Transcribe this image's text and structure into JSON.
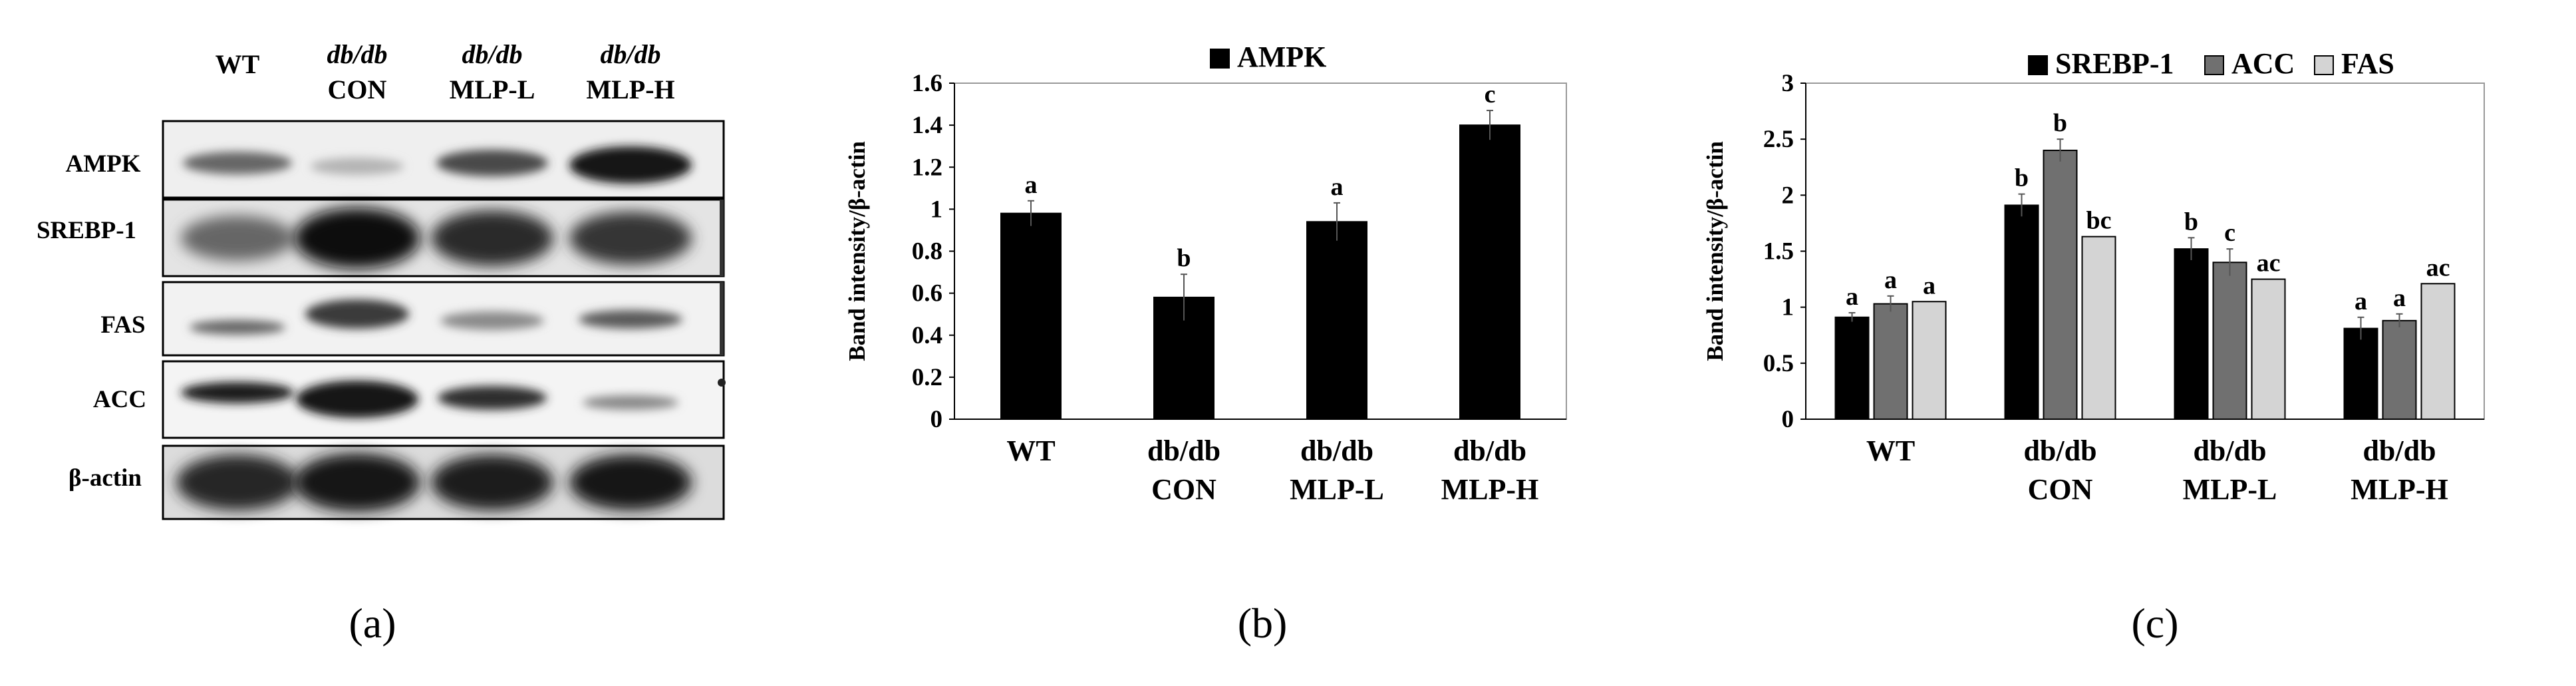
{
  "panel_labels": [
    "(a)",
    "(b)",
    "(c)"
  ],
  "blot": {
    "lanes": [
      {
        "line1": "WT",
        "line1_italic": false,
        "line2": ""
      },
      {
        "line1": "db/db",
        "line1_italic": true,
        "line2": "CON"
      },
      {
        "line1": "db/db",
        "line1_italic": true,
        "line2": "MLP-L"
      },
      {
        "line1": "db/db",
        "line1_italic": true,
        "line2": "MLP-H"
      }
    ],
    "proteins": [
      "AMPK",
      "SREBP-1",
      "FAS",
      "ACC",
      "β-actin"
    ]
  },
  "chart_data": [
    {
      "type": "bar",
      "title": "",
      "ylabel": "Band intensity/β-actin",
      "xlabel": "",
      "ylim": [
        0,
        1.6
      ],
      "yticks": [
        "0",
        "0.2",
        "0.4",
        "0.6",
        "0.8",
        "1",
        "1.2",
        "1.4",
        "1.6"
      ],
      "categories": [
        [
          "WT"
        ],
        [
          "db/db",
          "CON"
        ],
        [
          "db/db",
          "MLP-L"
        ],
        [
          "db/db",
          "MLP-H"
        ]
      ],
      "series": [
        {
          "name": "AMPK",
          "color": "#000000",
          "values": [
            0.98,
            0.58,
            0.94,
            1.4
          ],
          "errors": [
            0.06,
            0.11,
            0.09,
            0.07
          ],
          "letters": [
            "a",
            "b",
            "a",
            "c"
          ]
        }
      ],
      "legend_position": "top"
    },
    {
      "type": "bar",
      "title": "",
      "ylabel": "Band intensity/β-actin",
      "xlabel": "",
      "ylim": [
        0,
        3
      ],
      "yticks": [
        "0",
        "0.5",
        "1",
        "1.5",
        "2",
        "2.5",
        "3"
      ],
      "categories": [
        [
          "WT"
        ],
        [
          "db/db",
          "CON"
        ],
        [
          "db/db",
          "MLP-L"
        ],
        [
          "db/db",
          "MLP-H"
        ]
      ],
      "series": [
        {
          "name": "SREBP-1",
          "color": "#000000",
          "values": [
            0.91,
            1.91,
            1.52,
            0.81
          ],
          "errors": [
            0.04,
            0.1,
            0.1,
            0.1
          ],
          "letters": [
            "a",
            "b",
            "b",
            "a"
          ]
        },
        {
          "name": "ACC",
          "color": "#707070",
          "values": [
            1.03,
            2.4,
            1.4,
            0.88
          ],
          "errors": [
            0.07,
            0.1,
            0.12,
            0.06
          ],
          "letters": [
            "a",
            "b",
            "c",
            "a"
          ]
        },
        {
          "name": "FAS",
          "color": "#d4d4d4",
          "values": [
            1.05,
            1.63,
            1.25,
            1.21
          ],
          "errors": [
            0,
            0,
            0,
            0
          ],
          "letters": [
            "a",
            "bc",
            "ac",
            "ac"
          ]
        }
      ],
      "legend_position": "top"
    }
  ]
}
